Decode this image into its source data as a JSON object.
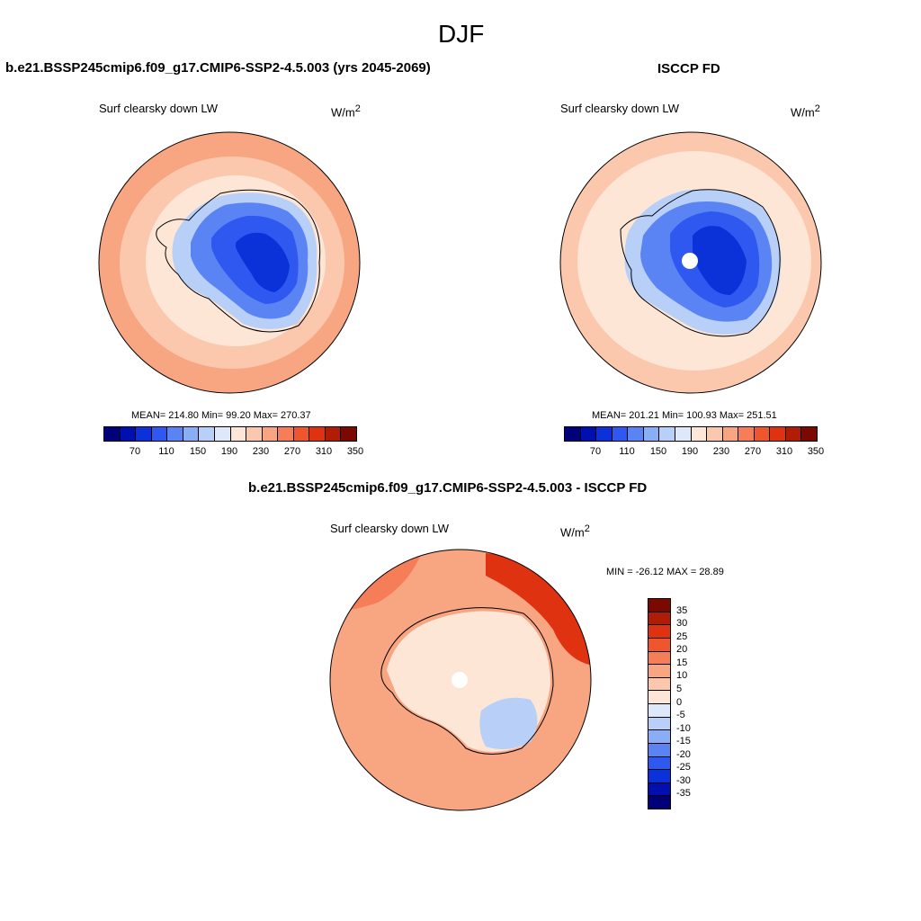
{
  "season": "DJF",
  "panels": {
    "model": {
      "title": "b.e21.BSSP245cmip6.f09_g17.CMIP6-SSP2-4.5.003 (yrs 2045-2069)",
      "variable": "Surf clearsky down LW",
      "units_base": "W/m",
      "units_exp": "2",
      "stats": "MEAN= 214.80  Min=  99.20  Max= 270.37"
    },
    "obs": {
      "title": "ISCCP FD",
      "variable": "Surf clearsky down LW",
      "units_base": "W/m",
      "units_exp": "2",
      "stats": "MEAN= 201.21  Min= 100.93  Max= 251.51"
    },
    "diff": {
      "title": "b.e21.BSSP245cmip6.f09_g17.CMIP6-SSP2-4.5.003 - ISCCP FD",
      "variable": "Surf clearsky down LW",
      "units_base": "W/m",
      "units_exp": "2",
      "stats": "MIN = -26.12 MAX =  28.89"
    }
  },
  "colorbar_main": {
    "colors": [
      "#00007a",
      "#0010b0",
      "#0a32d8",
      "#2e58f0",
      "#5a84f4",
      "#8aaef6",
      "#b8cff8",
      "#dde8fa",
      "#fde6d6",
      "#fbc8ad",
      "#f8a582",
      "#f57e58",
      "#f0562e",
      "#de3210",
      "#b01c06",
      "#7a0a00"
    ],
    "labels": [
      "70",
      "110",
      "150",
      "190",
      "230",
      "270",
      "310",
      "350"
    ]
  },
  "colorbar_diff": {
    "colors": [
      "#7a0a00",
      "#b01c06",
      "#de3210",
      "#f0562e",
      "#f57e58",
      "#f8a582",
      "#fbc8ad",
      "#fde6d6",
      "#dde8fa",
      "#b8cff8",
      "#8aaef6",
      "#5a84f4",
      "#2e58f0",
      "#0a32d8",
      "#0010b0",
      "#00007a"
    ],
    "labels": [
      "35",
      "30",
      "25",
      "20",
      "15",
      "10",
      "5",
      "0",
      "-5",
      "-10",
      "-15",
      "-20",
      "-25",
      "-30",
      "-35"
    ]
  },
  "map_colors": {
    "outer": "#f8a582",
    "mid": "#fbc8ad",
    "inner": "#fde6d6",
    "ice_edge": "#b8cff8",
    "ice1": "#5a84f4",
    "ice2": "#2e58f0",
    "ice3": "#0a32d8",
    "hole": "#ffffff",
    "diff_outer": "#f57e58",
    "diff_mid": "#f8a582",
    "diff_red": "#de3210",
    "diff_light": "#fde6d6",
    "diff_blue": "#b8cff8"
  }
}
